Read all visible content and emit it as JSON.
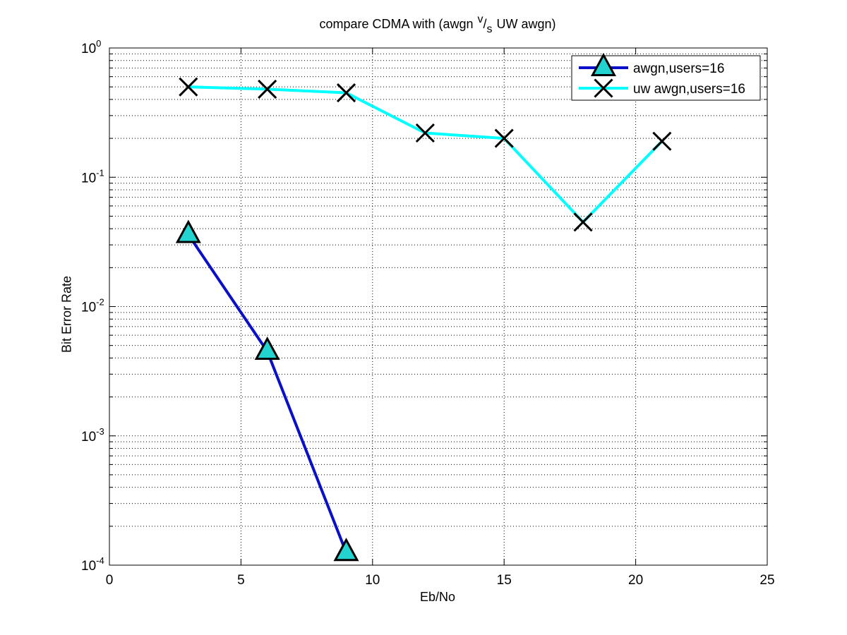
{
  "chart_data": {
    "type": "line",
    "title_parts": [
      "compare CDMA with (awgn",
      "v",
      "/",
      "s",
      "UW awgn)"
    ],
    "xlabel": "Eb/No",
    "ylabel": "Bit Error Rate",
    "xlim": [
      0,
      25
    ],
    "ylim": [
      0.0001,
      1
    ],
    "yscale": "log",
    "grid": true,
    "legend_position": "top-right",
    "xticks": [
      "0",
      "5",
      "10",
      "15",
      "20",
      "25"
    ],
    "yticks": [
      {
        "base": "10",
        "exp": "-4"
      },
      {
        "base": "10",
        "exp": "-3"
      },
      {
        "base": "10",
        "exp": "-2"
      },
      {
        "base": "10",
        "exp": "-1"
      },
      {
        "base": "10",
        "exp": "0"
      }
    ],
    "series": [
      {
        "name": "awgn,users=16",
        "color": "#0a10c8",
        "marker": "triangle",
        "marker_face": "#22d3d0",
        "x": [
          3,
          6,
          9
        ],
        "y": [
          0.036,
          0.0045,
          0.000125
        ]
      },
      {
        "name": "uw awgn,users=16",
        "color": "#00ffff",
        "marker": "x",
        "marker_face": "none",
        "x": [
          3,
          6,
          9,
          12,
          15,
          18,
          21
        ],
        "y": [
          0.5,
          0.48,
          0.45,
          0.22,
          0.2,
          0.045,
          0.19
        ]
      }
    ]
  }
}
